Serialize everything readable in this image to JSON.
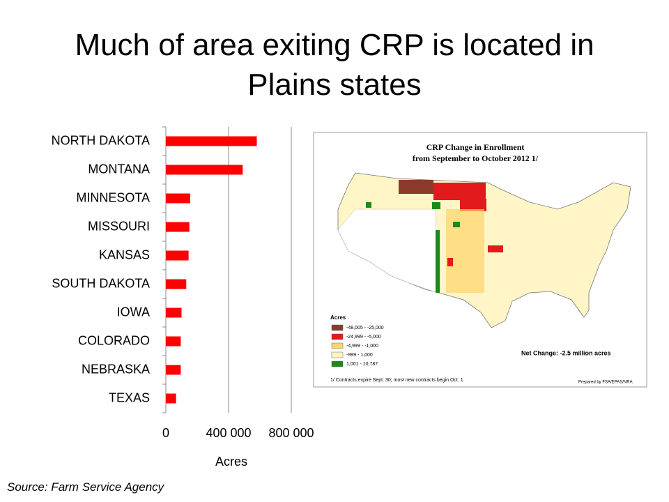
{
  "title": "Much of area exiting CRP is located in Plains states",
  "chart_data": {
    "type": "bar",
    "orientation": "horizontal",
    "categories": [
      "NORTH DAKOTA",
      "MONTANA",
      "MINNESOTA",
      "MISSOURI",
      "KANSAS",
      "SOUTH DAKOTA",
      "IOWA",
      "COLORADO",
      "NEBRASKA",
      "TEXAS"
    ],
    "values": [
      580000,
      490000,
      155000,
      150000,
      145000,
      130000,
      100000,
      95000,
      95000,
      65000
    ],
    "color": "#ff0000",
    "xlabel": "Acres",
    "xlim": [
      0,
      800000
    ],
    "xticks": [
      0,
      {
        "value": 400000,
        "label": "400 000"
      },
      {
        "value": 800000,
        "label": "800 000"
      }
    ],
    "grid": true
  },
  "source": "Source: Farm Service Agency",
  "map": {
    "title": [
      "CRP Change in Enrollment",
      "from September to October 2012  1/"
    ],
    "legend_title": "Acres",
    "legend": [
      {
        "label": "-48,005 - -25,000",
        "color": "#8b3a2a"
      },
      {
        "label": "-24,999 - -5,000",
        "color": "#e31a1c"
      },
      {
        "label": "-4,999 - -1,000",
        "color": "#fdd56b"
      },
      {
        "label": "-999 - 1,000",
        "color": "#fff5c6"
      },
      {
        "label": "1,001 - 10,787",
        "color": "#1a8a1a"
      }
    ],
    "net_change": "Net Change: -2.5 million acres",
    "footnote": "1/ Contracts expire Sept. 30; most new contracts begin Oct. 1.",
    "credit": "Prepared by FSA/EPAS/NRA"
  }
}
